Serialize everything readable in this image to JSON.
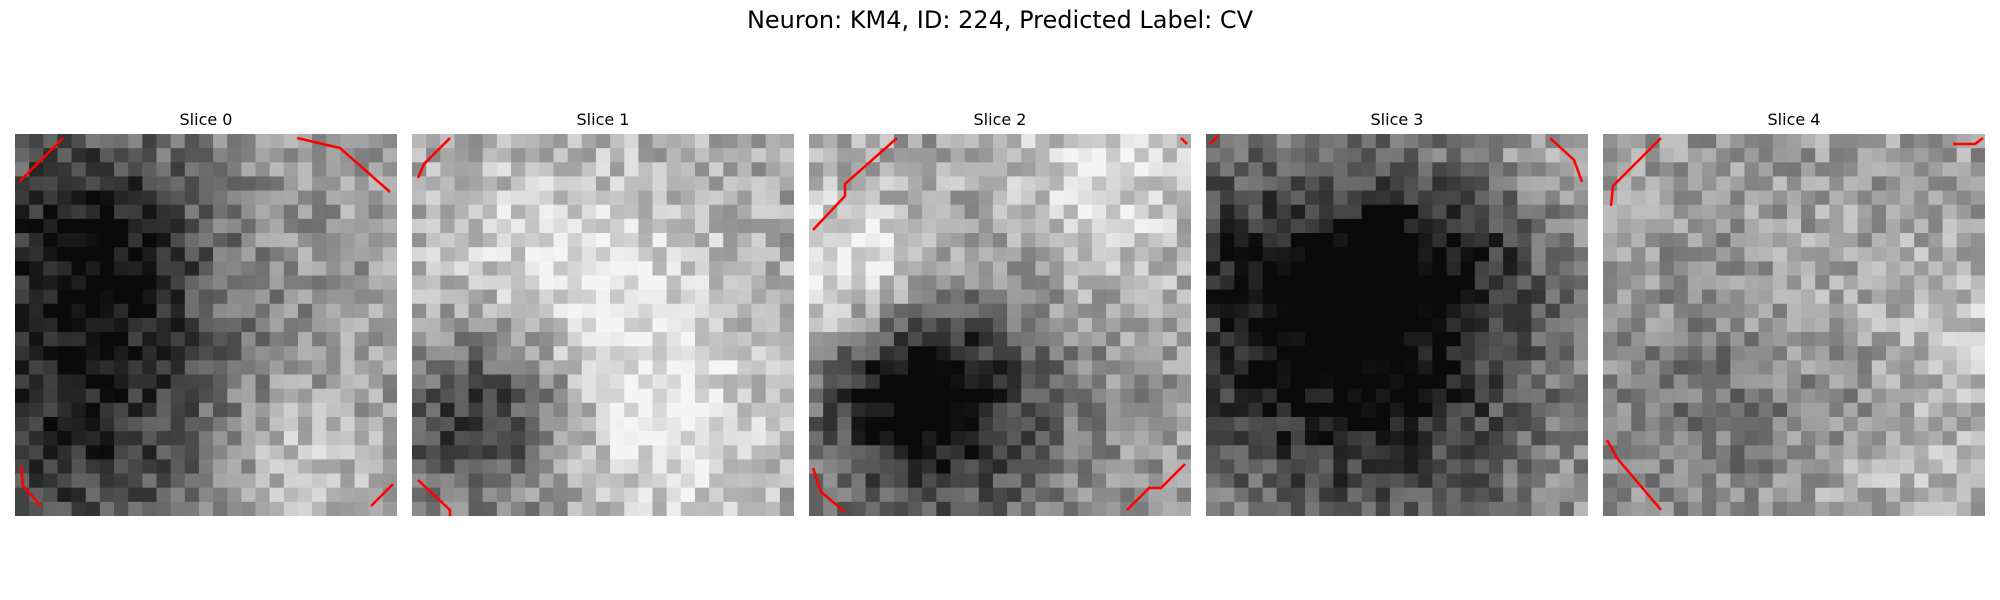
{
  "figure": {
    "title": "Neuron: KM4, ID: 224, Predicted Label: CV"
  },
  "panels": [
    {
      "title": "Slice 0",
      "seed": 11,
      "contour_color": "#ff0000"
    },
    {
      "title": "Slice 1",
      "seed": 23,
      "contour_color": "#ff0000"
    },
    {
      "title": "Slice 2",
      "seed": 37,
      "contour_color": "#ff0000"
    },
    {
      "title": "Slice 3",
      "seed": 53,
      "contour_color": "#ff0000"
    },
    {
      "title": "Slice 4",
      "seed": 71,
      "contour_color": "#ff0000"
    }
  ],
  "image": {
    "colormap": "gray"
  }
}
